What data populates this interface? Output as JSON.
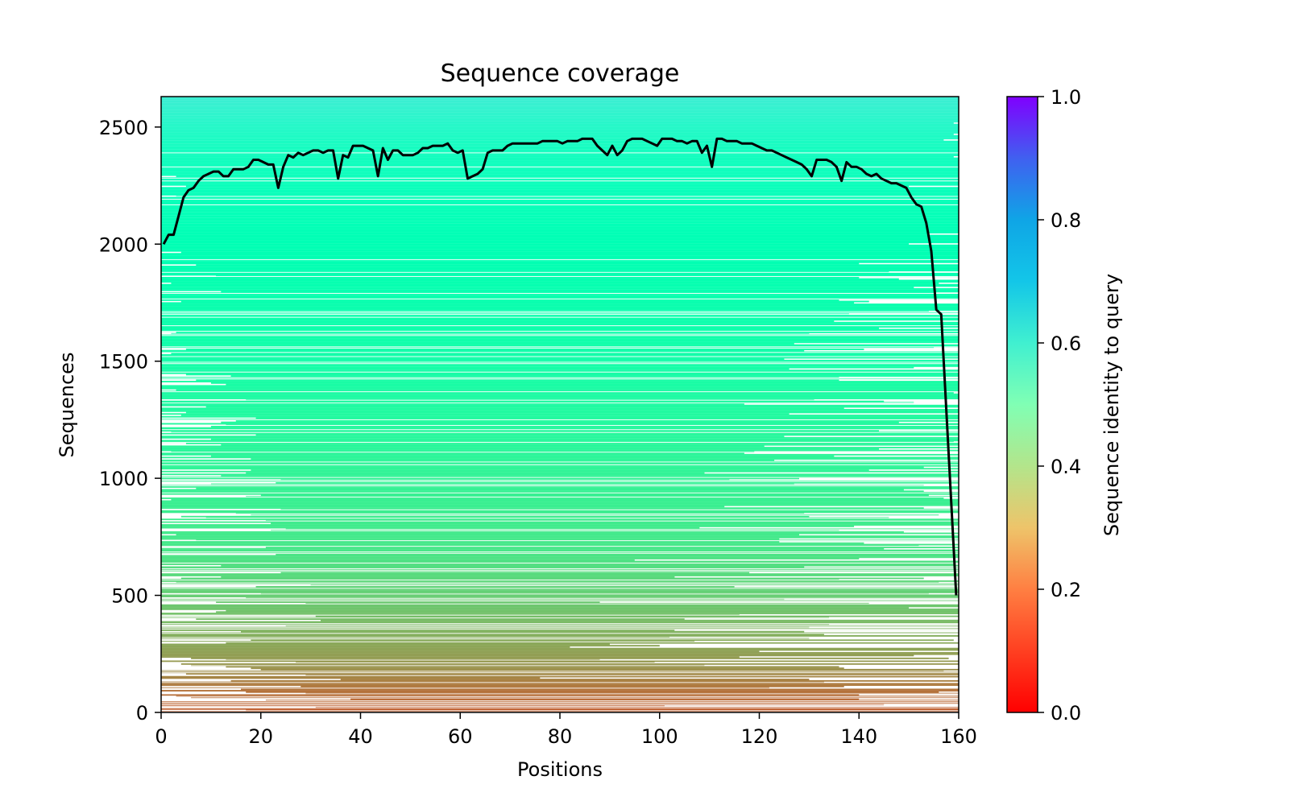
{
  "chart_data": {
    "type": "heatmap",
    "title": "Sequence coverage",
    "xlabel": "Positions",
    "ylabel": "Sequences",
    "xlim": [
      0,
      160
    ],
    "ylim": [
      0,
      2630
    ],
    "xticks": [
      0,
      20,
      40,
      60,
      80,
      100,
      120,
      140,
      160
    ],
    "yticks": [
      0,
      500,
      1000,
      1500,
      2000,
      2500
    ],
    "grid": false,
    "colormap": "rainbow_r",
    "colorbar": {
      "label": "Sequence identity to query",
      "range": [
        0.0,
        1.0
      ],
      "ticks": [
        "0.0",
        "0.2",
        "0.4",
        "0.6",
        "0.8",
        "1.0"
      ]
    },
    "identity_by_sequence_index": {
      "y": [
        0,
        100,
        200,
        300,
        500,
        700,
        1000,
        1500,
        2000,
        2400,
        2630
      ],
      "identity": [
        0.12,
        0.15,
        0.2,
        0.23,
        0.3,
        0.36,
        0.4,
        0.46,
        0.5,
        0.54,
        0.62
      ]
    },
    "series": [
      {
        "type": "line",
        "color": "#000000",
        "x": [
          0,
          1,
          2,
          3,
          4,
          5,
          6,
          7,
          8,
          9,
          10,
          11,
          12,
          13,
          14,
          15,
          16,
          17,
          18,
          19,
          20,
          21,
          22,
          23,
          24,
          25,
          26,
          27,
          28,
          29,
          30,
          31,
          32,
          33,
          34,
          35,
          36,
          37,
          38,
          39,
          40,
          41,
          42,
          43,
          44,
          45,
          46,
          47,
          48,
          49,
          50,
          51,
          52,
          53,
          54,
          55,
          56,
          57,
          58,
          59,
          60,
          61,
          62,
          63,
          64,
          65,
          66,
          67,
          68,
          69,
          70,
          71,
          72,
          73,
          74,
          75,
          76,
          77,
          78,
          79,
          80,
          81,
          82,
          83,
          84,
          85,
          86,
          87,
          88,
          89,
          90,
          91,
          92,
          93,
          94,
          95,
          96,
          97,
          98,
          99,
          100,
          101,
          102,
          103,
          104,
          105,
          106,
          107,
          108,
          109,
          110,
          111,
          112,
          113,
          114,
          115,
          116,
          117,
          118,
          119,
          120,
          121,
          122,
          123,
          124,
          125,
          126,
          127,
          128,
          129,
          130,
          131,
          132,
          133,
          134,
          135,
          136,
          137,
          138,
          139,
          140,
          141,
          142,
          143,
          144,
          145,
          146,
          147,
          148,
          149,
          150,
          151,
          152,
          153,
          154,
          155,
          156,
          157,
          158,
          159
        ],
        "y": [
          2000,
          2040,
          2040,
          2120,
          2200,
          2230,
          2240,
          2270,
          2290,
          2300,
          2310,
          2310,
          2290,
          2290,
          2320,
          2320,
          2320,
          2330,
          2360,
          2360,
          2350,
          2340,
          2340,
          2240,
          2330,
          2380,
          2370,
          2390,
          2380,
          2390,
          2400,
          2400,
          2390,
          2400,
          2400,
          2280,
          2380,
          2370,
          2420,
          2420,
          2420,
          2410,
          2400,
          2290,
          2410,
          2360,
          2400,
          2400,
          2380,
          2380,
          2380,
          2390,
          2410,
          2410,
          2420,
          2420,
          2420,
          2430,
          2400,
          2390,
          2400,
          2280,
          2290,
          2300,
          2320,
          2390,
          2400,
          2400,
          2400,
          2420,
          2430,
          2430,
          2430,
          2430,
          2430,
          2430,
          2440,
          2440,
          2440,
          2440,
          2430,
          2440,
          2440,
          2440,
          2450,
          2450,
          2450,
          2420,
          2400,
          2380,
          2420,
          2380,
          2400,
          2440,
          2450,
          2450,
          2450,
          2440,
          2430,
          2420,
          2450,
          2450,
          2450,
          2440,
          2440,
          2430,
          2440,
          2440,
          2390,
          2420,
          2330,
          2450,
          2450,
          2440,
          2440,
          2440,
          2430,
          2430,
          2430,
          2420,
          2410,
          2400,
          2400,
          2390,
          2380,
          2370,
          2360,
          2350,
          2340,
          2320,
          2290,
          2360,
          2360,
          2360,
          2350,
          2330,
          2270,
          2350,
          2330,
          2330,
          2320,
          2300,
          2290,
          2300,
          2280,
          2270,
          2260,
          2260,
          2250,
          2240,
          2200,
          2170,
          2160,
          2090,
          1970,
          1720,
          1700,
          1300,
          900,
          500
        ]
      }
    ]
  }
}
